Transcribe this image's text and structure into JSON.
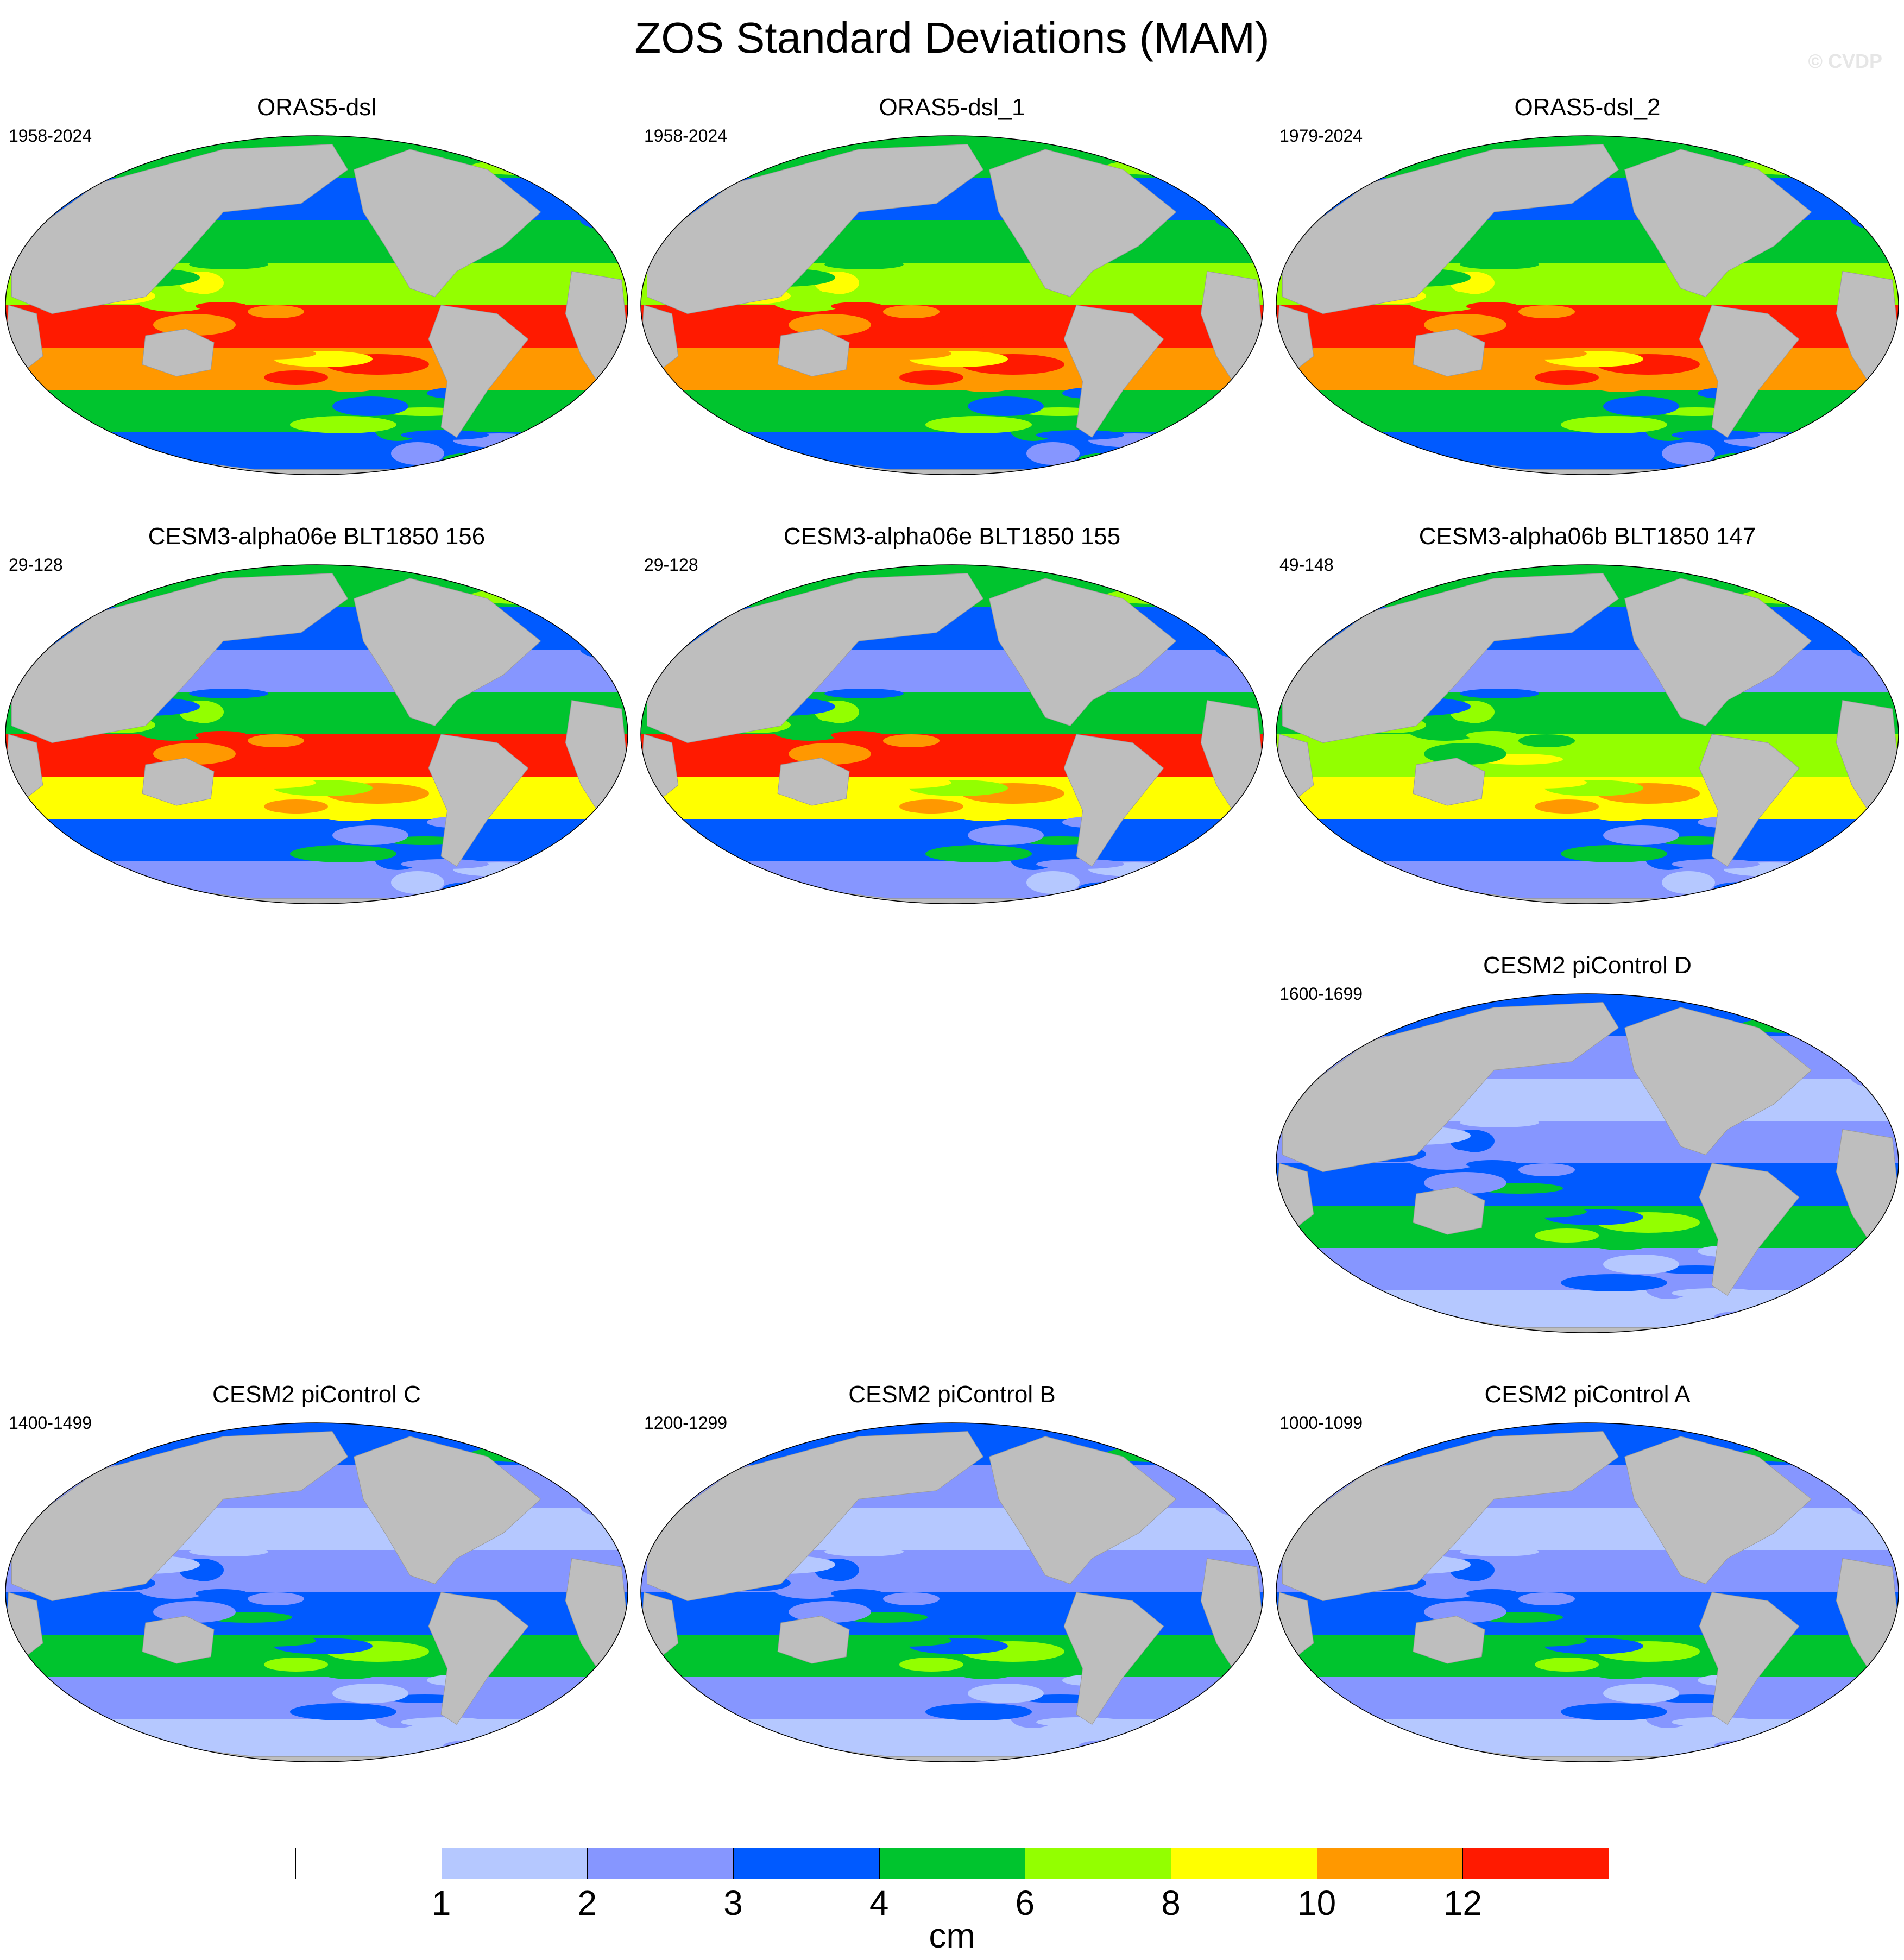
{
  "title": "ZOS Standard Deviations (MAM)",
  "copyright": "© CVDP",
  "ocean_palette": [
    "#ffffff",
    "#b5c8ff",
    "#8696ff",
    "#005aff",
    "#00c42e",
    "#93ff00",
    "#ffff00",
    "#ff9800",
    "#ff1a00"
  ],
  "land_color": "#bebebe",
  "panels": [
    {
      "title": "ORAS5-dsl",
      "period": "1958-2024",
      "dominant": [
        4,
        3,
        4,
        5,
        8,
        7,
        4,
        3
      ]
    },
    {
      "title": "ORAS5-dsl_1",
      "period": "1958-2024",
      "dominant": [
        4,
        3,
        4,
        5,
        8,
        7,
        4,
        3
      ]
    },
    {
      "title": "ORAS5-dsl_2",
      "period": "1979-2024",
      "dominant": [
        4,
        3,
        4,
        5,
        8,
        7,
        4,
        3
      ]
    },
    {
      "title": "CESM3-alpha06e BLT1850 156",
      "period": "29-128",
      "dominant": [
        4,
        3,
        2,
        4,
        8,
        6,
        3,
        2
      ]
    },
    {
      "title": "CESM3-alpha06e BLT1850 155",
      "period": "29-128",
      "dominant": [
        4,
        3,
        2,
        4,
        8,
        6,
        3,
        2
      ]
    },
    {
      "title": "CESM3-alpha06b BLT1850 147",
      "period": "49-148",
      "dominant": [
        4,
        3,
        2,
        4,
        5,
        6,
        3,
        2
      ]
    },
    {
      "title": "CESM2 piControl D",
      "period": "1600-1699",
      "dominant": [
        3,
        2,
        1,
        2,
        3,
        4,
        2,
        1
      ]
    },
    {
      "title": "CESM2 piControl C",
      "period": "1400-1499",
      "dominant": [
        3,
        2,
        1,
        2,
        3,
        4,
        2,
        1
      ]
    },
    {
      "title": "CESM2 piControl B",
      "period": "1200-1299",
      "dominant": [
        3,
        2,
        1,
        2,
        3,
        4,
        2,
        1
      ]
    },
    {
      "title": "CESM2 piControl A",
      "period": "1000-1099",
      "dominant": [
        3,
        2,
        1,
        2,
        3,
        4,
        2,
        1
      ]
    }
  ],
  "colorbar": {
    "colors": [
      "#ffffff",
      "#b5c8ff",
      "#8696ff",
      "#005aff",
      "#00c42e",
      "#93ff00",
      "#ffff00",
      "#ff9800",
      "#ff1a00"
    ],
    "labels": [
      "1",
      "2",
      "3",
      "4",
      "6",
      "8",
      "10",
      "12"
    ],
    "units": "cm"
  }
}
